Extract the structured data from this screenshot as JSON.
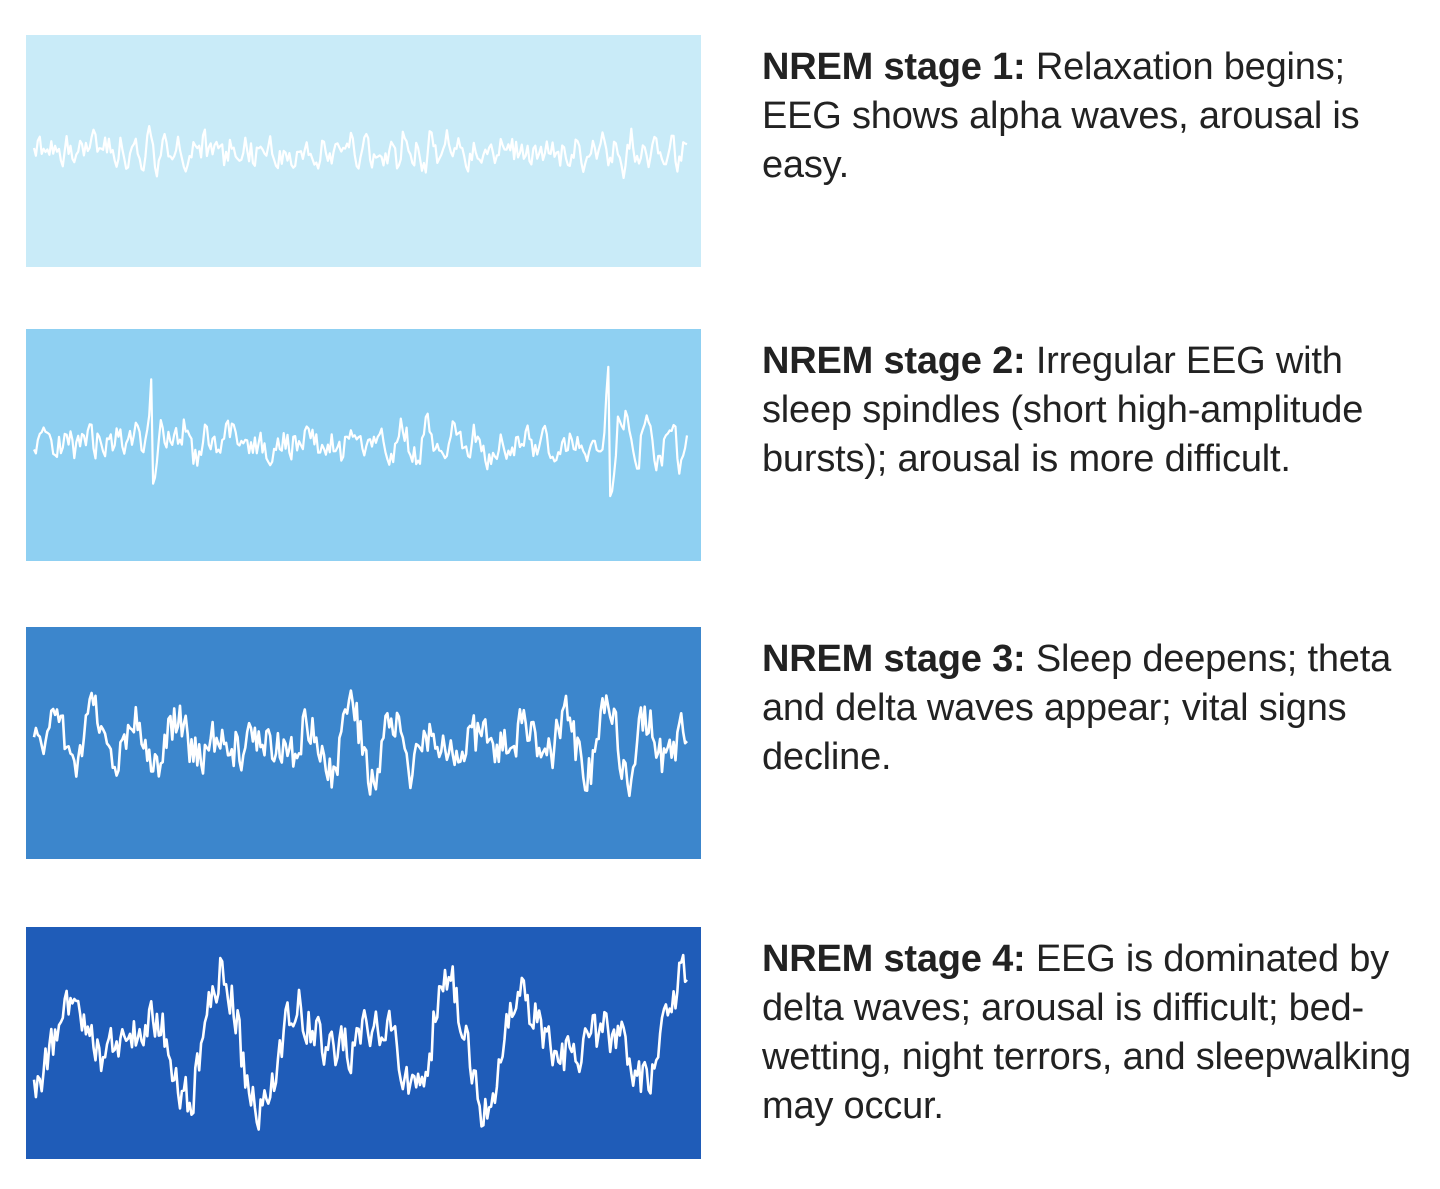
{
  "stages": [
    {
      "label": "NREM stage 1:",
      "text": " Relaxation begins; EEG shows alpha waves, arousal is easy.",
      "panel_color": "#c9ebf8",
      "wave": {
        "amplitude": 0.12,
        "noise": 0.8,
        "frequency": 0.9,
        "seed": 11,
        "spikes": []
      }
    },
    {
      "label": "NREM stage 2:",
      "text": " Irregular EEG with sleep spindles (short high-amplitude bursts); arousal is more difficult.",
      "panel_color": "#8fd0f2",
      "wave": {
        "amplitude": 0.16,
        "noise": 0.75,
        "frequency": 0.5,
        "seed": 23,
        "spikes": [
          0.18,
          0.88
        ]
      }
    },
    {
      "label": "NREM stage 3:",
      "text": " Sleep deepens; theta and delta waves appear; vital signs decline.",
      "panel_color": "#3c86cc",
      "wave": {
        "amplitude": 0.35,
        "noise": 0.6,
        "frequency": 0.28,
        "seed": 37,
        "spikes": []
      }
    },
    {
      "label": "NREM stage 4:",
      "text": " EEG is dominated by delta waves; arousal is difficult; bed-wetting, night terrors, and sleepwalking may occur.",
      "panel_color": "#1f5cb8",
      "wave": {
        "amplitude": 0.75,
        "noise": 0.3,
        "frequency": 0.16,
        "seed": 53,
        "spikes": []
      }
    }
  ]
}
